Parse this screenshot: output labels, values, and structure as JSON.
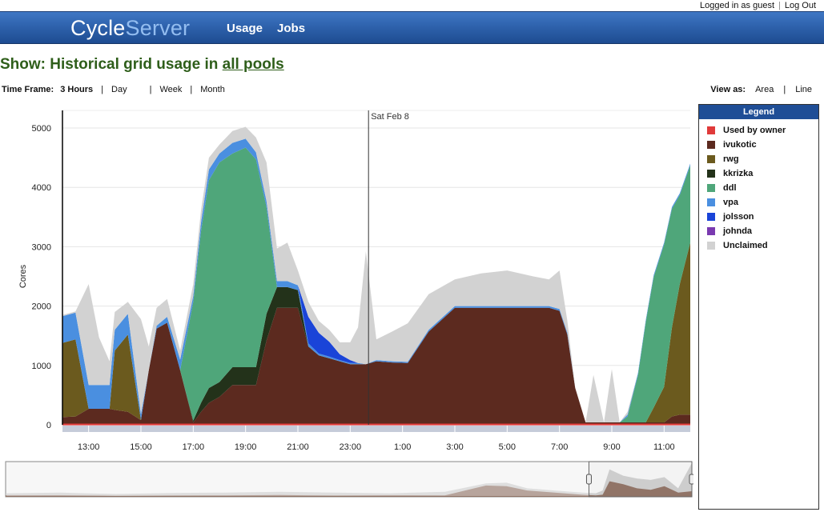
{
  "userbar": {
    "status": "Logged in as guest",
    "separator": "|",
    "logout": "Log Out"
  },
  "nav": {
    "brand_part1": "Cycle",
    "brand_part2": "Server",
    "links": [
      "Usage",
      "Jobs"
    ]
  },
  "heading": {
    "prefix": "Show: Historical grid usage in ",
    "link": "all pools"
  },
  "timeframe": {
    "label": "Time Frame:",
    "options": [
      "3 Hours",
      "Day",
      "Week",
      "Month"
    ],
    "selected": "3 Hours",
    "separator": "|"
  },
  "viewas": {
    "label": "View as:",
    "options": [
      "Area",
      "Line"
    ],
    "separator": "|"
  },
  "legend": {
    "title": "Legend",
    "items": [
      {
        "name": "Used by owner",
        "color": "#e03a3a"
      },
      {
        "name": "ivukotic",
        "color": "#5c2a1f"
      },
      {
        "name": "rwg",
        "color": "#6b5a1e"
      },
      {
        "name": "kkrizka",
        "color": "#23321a"
      },
      {
        "name": "ddl",
        "color": "#4fa67a"
      },
      {
        "name": "vpa",
        "color": "#4a8fe0"
      },
      {
        "name": "jolsson",
        "color": "#1a44d8"
      },
      {
        "name": "johnda",
        "color": "#7a3ab0"
      },
      {
        "name": "Unclaimed",
        "color": "#d2d2d2"
      }
    ]
  },
  "chart_data": {
    "type": "area",
    "ylabel": "Cores",
    "xlabel": "",
    "ylim": [
      0,
      5000
    ],
    "yticks": [
      0,
      1000,
      2000,
      3000,
      4000,
      5000
    ],
    "xticks": [
      "13:00",
      "15:00",
      "17:00",
      "19:00",
      "21:00",
      "23:00",
      "1:00",
      "3:00",
      "5:00",
      "7:00",
      "9:00",
      "11:00"
    ],
    "xrange_hours": [
      12.0,
      36.0
    ],
    "xtick_hours": [
      13,
      15,
      17,
      19,
      21,
      23,
      25,
      27,
      29,
      31,
      33,
      35
    ],
    "marker": {
      "label": "Sat Feb 8",
      "hour": 23.7
    },
    "grid": true,
    "legend_position": "right",
    "stacked": true,
    "x": [
      12.0,
      12.5,
      13.0,
      13.4,
      13.8,
      14.0,
      14.5,
      15.0,
      15.3,
      15.6,
      16.0,
      16.5,
      17.0,
      17.3,
      17.6,
      18.0,
      18.5,
      19.0,
      19.4,
      19.8,
      20.2,
      20.6,
      21.0,
      21.4,
      21.8,
      22.2,
      22.6,
      23.0,
      23.3,
      23.6,
      24.0,
      24.6,
      25.2,
      26.0,
      27.0,
      28.0,
      29.0,
      30.0,
      30.6,
      31.0,
      31.3,
      31.6,
      32.0,
      32.3,
      32.7,
      33.0,
      33.3,
      33.6,
      34.0,
      34.3,
      34.6,
      35.0,
      35.3,
      35.6,
      36.0
    ],
    "series": [
      {
        "name": "Used by owner",
        "values": [
          20,
          20,
          20,
          20,
          20,
          20,
          20,
          20,
          20,
          20,
          20,
          20,
          20,
          20,
          20,
          20,
          20,
          20,
          20,
          20,
          20,
          20,
          20,
          20,
          20,
          20,
          20,
          20,
          20,
          20,
          20,
          20,
          20,
          20,
          20,
          20,
          20,
          20,
          20,
          20,
          20,
          20,
          20,
          20,
          20,
          20,
          20,
          20,
          20,
          20,
          20,
          20,
          20,
          20,
          20
        ]
      },
      {
        "name": "ivukotic",
        "values": [
          110,
          120,
          250,
          250,
          250,
          230,
          200,
          60,
          900,
          1600,
          1700,
          900,
          20,
          200,
          350,
          450,
          650,
          650,
          650,
          1400,
          1950,
          1950,
          1950,
          1300,
          1150,
          1100,
          1050,
          1000,
          1000,
          1000,
          1050,
          1030,
          1020,
          1550,
          1950,
          1950,
          1950,
          1950,
          1950,
          1900,
          1500,
          600,
          20,
          20,
          20,
          20,
          20,
          20,
          20,
          20,
          20,
          20,
          120,
          150,
          150
        ]
      },
      {
        "name": "rwg",
        "values": [
          1250,
          1300,
          0,
          0,
          0,
          1000,
          1300,
          0,
          0,
          0,
          0,
          0,
          0,
          0,
          0,
          0,
          0,
          0,
          0,
          0,
          0,
          0,
          0,
          0,
          0,
          0,
          0,
          0,
          0,
          0,
          0,
          0,
          0,
          0,
          0,
          0,
          0,
          0,
          0,
          0,
          0,
          0,
          0,
          0,
          0,
          0,
          0,
          0,
          0,
          0,
          250,
          600,
          1500,
          2200,
          2900
        ]
      },
      {
        "name": "kkrizka",
        "values": [
          0,
          0,
          0,
          0,
          0,
          0,
          0,
          0,
          0,
          0,
          0,
          0,
          30,
          150,
          250,
          250,
          300,
          300,
          300,
          450,
          350,
          350,
          300,
          0,
          0,
          0,
          0,
          0,
          0,
          0,
          0,
          0,
          0,
          0,
          0,
          0,
          0,
          0,
          0,
          0,
          0,
          0,
          0,
          0,
          0,
          0,
          0,
          0,
          0,
          0,
          0,
          0,
          0,
          0,
          0
        ]
      },
      {
        "name": "ddl",
        "values": [
          0,
          0,
          0,
          0,
          0,
          0,
          0,
          0,
          0,
          0,
          0,
          0,
          2000,
          2900,
          3500,
          3700,
          3600,
          3700,
          3500,
          1800,
          0,
          0,
          0,
          0,
          0,
          0,
          0,
          0,
          0,
          0,
          0,
          0,
          0,
          0,
          0,
          0,
          0,
          0,
          0,
          0,
          0,
          0,
          0,
          0,
          0,
          0,
          0,
          100,
          800,
          1700,
          2200,
          2400,
          2000,
          1500,
          1300
        ]
      },
      {
        "name": "vpa",
        "values": [
          450,
          450,
          400,
          400,
          400,
          350,
          350,
          100,
          0,
          50,
          100,
          180,
          100,
          150,
          180,
          150,
          180,
          150,
          120,
          100,
          100,
          100,
          80,
          50,
          30,
          30,
          20,
          20,
          20,
          0,
          20,
          20,
          20,
          30,
          30,
          30,
          30,
          30,
          30,
          30,
          30,
          0,
          0,
          0,
          0,
          0,
          0,
          30,
          30,
          30,
          30,
          30,
          30,
          30,
          30
        ]
      },
      {
        "name": "jolsson",
        "values": [
          0,
          0,
          0,
          0,
          0,
          0,
          0,
          0,
          0,
          0,
          0,
          0,
          0,
          0,
          0,
          0,
          0,
          0,
          0,
          0,
          0,
          0,
          0,
          450,
          350,
          250,
          100,
          50,
          0,
          0,
          0,
          0,
          0,
          0,
          0,
          0,
          0,
          0,
          0,
          0,
          0,
          0,
          0,
          0,
          0,
          0,
          0,
          0,
          0,
          0,
          0,
          0,
          0,
          0,
          0
        ]
      },
      {
        "name": "johnda",
        "values": [
          0,
          0,
          0,
          0,
          0,
          0,
          0,
          0,
          0,
          0,
          0,
          0,
          0,
          0,
          0,
          0,
          0,
          0,
          0,
          0,
          0,
          0,
          0,
          0,
          0,
          0,
          0,
          0,
          0,
          0,
          0,
          0,
          0,
          0,
          0,
          0,
          0,
          0,
          0,
          0,
          0,
          0,
          0,
          0,
          0,
          0,
          0,
          0,
          0,
          0,
          0,
          0,
          0,
          0,
          0
        ]
      },
      {
        "name": "Unclaimed",
        "values": [
          20,
          20,
          1700,
          800,
          400,
          300,
          200,
          1600,
          400,
          300,
          300,
          150,
          200,
          200,
          200,
          150,
          200,
          200,
          250,
          650,
          550,
          650,
          250,
          250,
          200,
          200,
          200,
          300,
          600,
          1900,
          350,
          500,
          650,
          600,
          450,
          550,
          600,
          500,
          450,
          650,
          200,
          0,
          0,
          800,
          0,
          900,
          0,
          50,
          0,
          0,
          0,
          0,
          0,
          0,
          0
        ]
      }
    ],
    "overview": {
      "ylim": [
        0,
        5000
      ],
      "x": [
        0.0,
        0.08,
        0.16,
        0.24,
        0.32,
        0.4,
        0.48,
        0.56,
        0.64,
        0.7,
        0.73,
        0.76,
        0.8,
        0.84,
        0.86,
        0.87,
        0.88,
        0.9,
        0.92,
        0.94,
        0.96,
        0.98,
        1.0
      ],
      "brown": [
        200,
        220,
        150,
        180,
        200,
        250,
        180,
        220,
        200,
        1600,
        1500,
        900,
        600,
        300,
        200,
        300,
        2200,
        1800,
        1200,
        1000,
        1500,
        600,
        800
      ],
      "grey": [
        500,
        600,
        400,
        550,
        600,
        700,
        600,
        500,
        700,
        1900,
        2000,
        1200,
        900,
        600,
        500,
        900,
        3900,
        3000,
        2600,
        2400,
        2800,
        1200,
        4800
      ],
      "window": [
        0.85,
        1.0
      ]
    }
  }
}
